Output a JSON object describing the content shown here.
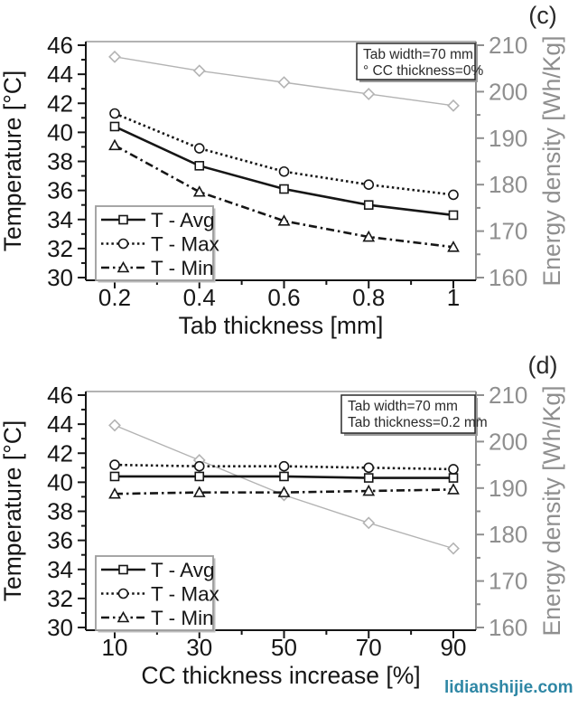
{
  "watermark": {
    "text": "lidianshijie.com",
    "color": "#2f87a5"
  },
  "colors": {
    "temperature": "#161616",
    "energy": "#b3b3b3",
    "right_axis": "#8f8f8f",
    "frame_top": "#9a9a9a",
    "annotation_border": "#2a2a2a",
    "legend_border": "#9c9c9c"
  },
  "chart_data": [
    {
      "panel_label": "(c)",
      "type": "line",
      "xlabel": "Tab thickness [mm]",
      "ylabel_left": "Temperature [°C]",
      "ylabel_right": "Energy density [Wh/Kg]",
      "x": [
        0.2,
        0.4,
        0.6,
        0.8,
        1
      ],
      "x_tick_labels": [
        "0.2",
        "0.4",
        "0.6",
        "0.8",
        "1"
      ],
      "ylim_left": [
        30,
        46
      ],
      "yticks_left": [
        30,
        32,
        34,
        36,
        38,
        40,
        42,
        44,
        46
      ],
      "ylim_right": [
        160,
        210
      ],
      "yticks_right": [
        160,
        170,
        180,
        190,
        200,
        210
      ],
      "grid": false,
      "legend_position": "lower-left",
      "annotation": [
        "Tab width=70 mm",
        "° CC thickness=0%"
      ],
      "legend": [
        "T - Avg",
        "T - Max",
        "T - Min"
      ],
      "series": [
        {
          "name": "Energy density",
          "axis": "right",
          "marker": "diamond",
          "linestyle": "solid",
          "values": [
            207.5,
            204.5,
            202.0,
            199.5,
            197.0
          ]
        },
        {
          "name": "T - Avg",
          "axis": "left",
          "marker": "square",
          "linestyle": "solid",
          "values": [
            40.4,
            37.7,
            36.1,
            35.0,
            34.3
          ]
        },
        {
          "name": "T - Max",
          "axis": "left",
          "marker": "circle",
          "linestyle": "dotted",
          "values": [
            41.3,
            38.9,
            37.3,
            36.4,
            35.7
          ]
        },
        {
          "name": "T - Min",
          "axis": "left",
          "marker": "triangle",
          "linestyle": "dashdot",
          "values": [
            39.1,
            35.9,
            33.9,
            32.8,
            32.1
          ]
        }
      ]
    },
    {
      "panel_label": "(d)",
      "type": "line",
      "xlabel": "CC thickness increase [%]",
      "ylabel_left": "Temperature [°C]",
      "ylabel_right": "Energy density [Wh/Kg]",
      "x": [
        10,
        30,
        50,
        70,
        90
      ],
      "x_tick_labels": [
        "10",
        "30",
        "50",
        "70",
        "90"
      ],
      "ylim_left": [
        30,
        46
      ],
      "yticks_left": [
        30,
        32,
        34,
        36,
        38,
        40,
        42,
        44,
        46
      ],
      "ylim_right": [
        160,
        210
      ],
      "yticks_right": [
        160,
        170,
        180,
        190,
        200,
        210
      ],
      "grid": false,
      "legend_position": "lower-left",
      "annotation": [
        "Tab width=70 mm",
        "Tab thickness=0.2 mm"
      ],
      "legend": [
        "T - Avg",
        "T - Max",
        "T - Min"
      ],
      "series": [
        {
          "name": "Energy density",
          "axis": "right",
          "marker": "diamond",
          "linestyle": "solid",
          "values": [
            203.5,
            196.0,
            188.5,
            182.5,
            177.0
          ]
        },
        {
          "name": "T - Avg",
          "axis": "left",
          "marker": "square",
          "linestyle": "solid",
          "values": [
            40.4,
            40.4,
            40.4,
            40.3,
            40.3
          ]
        },
        {
          "name": "T - Max",
          "axis": "left",
          "marker": "circle",
          "linestyle": "dotted",
          "values": [
            41.2,
            41.1,
            41.1,
            41.0,
            40.9
          ]
        },
        {
          "name": "T - Min",
          "axis": "left",
          "marker": "triangle",
          "linestyle": "dashdot",
          "values": [
            39.2,
            39.3,
            39.3,
            39.4,
            39.5
          ]
        }
      ]
    }
  ]
}
